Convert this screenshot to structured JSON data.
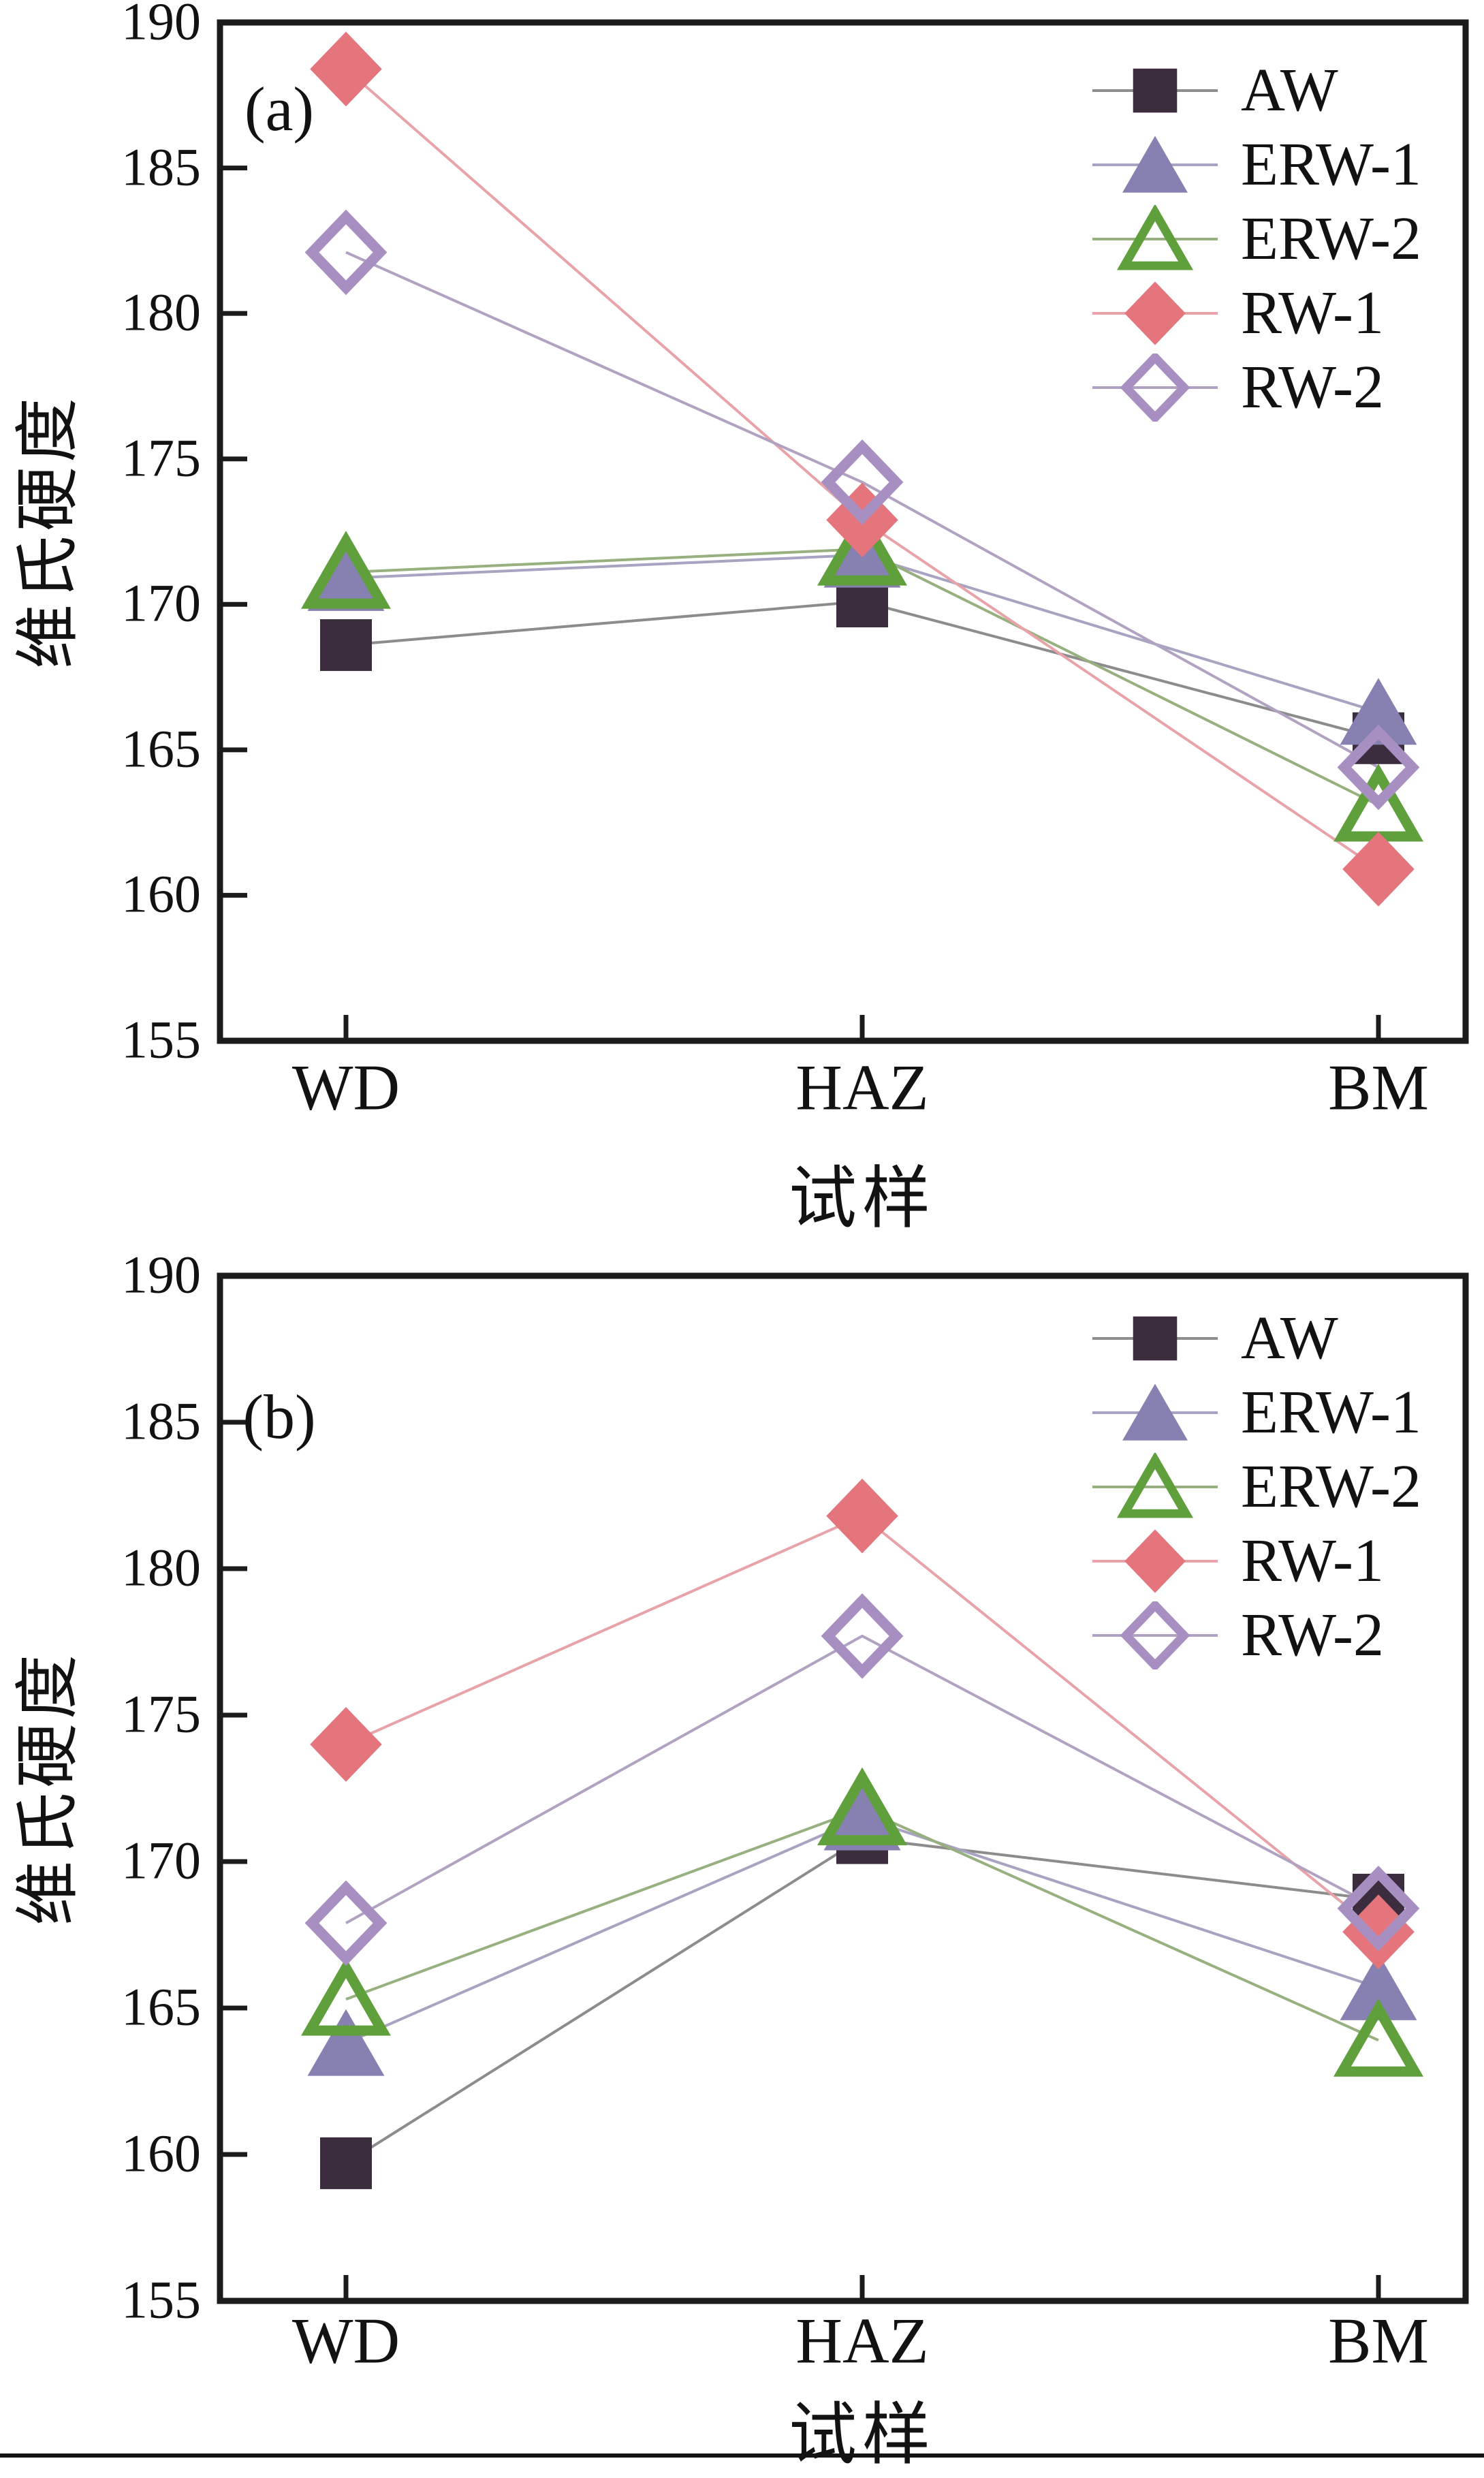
{
  "page": {
    "background": "#ffffff",
    "frame_color": "#1b1b1b",
    "text_color": "#121212"
  },
  "chart_data": [
    {
      "type": "line",
      "panel_label": "(a)",
      "xlabel": "试样",
      "ylabel": "维氏硬度",
      "categories": [
        "WD",
        "HAZ",
        "BM"
      ],
      "y_ticks": [
        190,
        185,
        180,
        175,
        170,
        165,
        160,
        155
      ],
      "ylim": [
        155,
        190
      ],
      "grid": false,
      "legend_position": "upper right",
      "series": [
        {
          "name": "AW",
          "marker": "square",
          "filled": true,
          "marker_color": "#3b2d3d",
          "line_color": "#8c8c8c",
          "values": [
            168.6,
            170.1,
            165.4
          ]
        },
        {
          "name": "ERW-1",
          "marker": "triangle",
          "filled": true,
          "marker_color": "#8781b2",
          "line_color": "#a8a3c0",
          "values": [
            170.9,
            171.7,
            166.3
          ]
        },
        {
          "name": "ERW-2",
          "marker": "triangle",
          "filled": false,
          "marker_color": "#5fa03c",
          "line_color": "#97b07f",
          "values": [
            171.1,
            171.9,
            163.1
          ]
        },
        {
          "name": "RW-1",
          "marker": "diamond",
          "filled": true,
          "marker_color": "#e4757c",
          "line_color": "#e8a3a8",
          "values": [
            188.4,
            172.9,
            160.9
          ]
        },
        {
          "name": "RW-2",
          "marker": "diamond",
          "filled": false,
          "marker_color": "#a78fc2",
          "line_color": "#b2a2c2",
          "values": [
            182.1,
            174.2,
            164.4
          ]
        }
      ]
    },
    {
      "type": "line",
      "panel_label": "(b)",
      "xlabel": "试样",
      "ylabel": "维氏硬度",
      "categories": [
        "WD",
        "HAZ",
        "BM"
      ],
      "y_ticks": [
        190,
        185,
        180,
        175,
        170,
        165,
        160,
        155
      ],
      "ylim": [
        155,
        190
      ],
      "grid": false,
      "legend_position": "upper right",
      "series": [
        {
          "name": "AW",
          "marker": "square",
          "filled": true,
          "marker_color": "#3b2d3d",
          "line_color": "#8c8c8c",
          "values": [
            159.7,
            170.8,
            168.7
          ]
        },
        {
          "name": "ERW-1",
          "marker": "triangle",
          "filled": true,
          "marker_color": "#8781b2",
          "line_color": "#a8a3c0",
          "values": [
            163.8,
            171.5,
            165.7
          ]
        },
        {
          "name": "ERW-2",
          "marker": "triangle",
          "filled": false,
          "marker_color": "#5fa03c",
          "line_color": "#97b07f",
          "values": [
            165.3,
            171.8,
            163.9
          ]
        },
        {
          "name": "RW-1",
          "marker": "diamond",
          "filled": true,
          "marker_color": "#e4757c",
          "line_color": "#e8a3a8",
          "values": [
            174.0,
            181.8,
            167.6
          ]
        },
        {
          "name": "RW-2",
          "marker": "diamond",
          "filled": false,
          "marker_color": "#a78fc2",
          "line_color": "#b2a2c2",
          "values": [
            167.9,
            177.7,
            168.4
          ]
        }
      ]
    }
  ]
}
